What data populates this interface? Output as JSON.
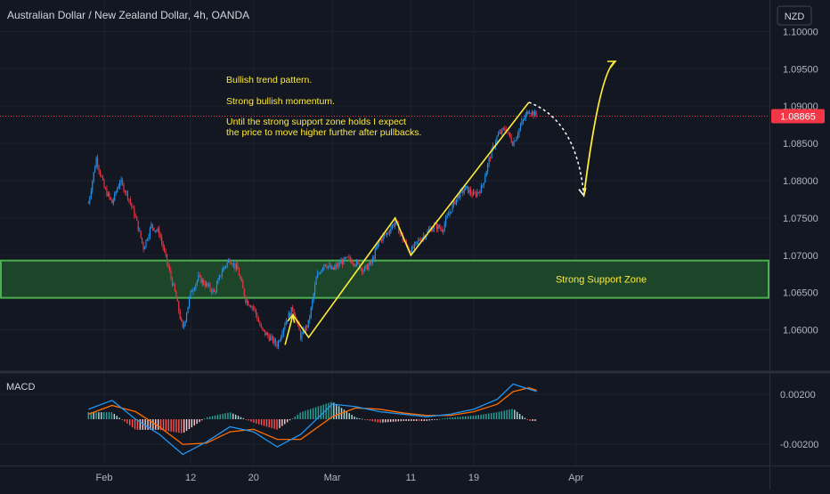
{
  "chart_title": "Australian Dollar / New Zealand Dollar, 4h, OANDA",
  "currency_button": "NZD",
  "last_price": "1.08865",
  "annotations": {
    "line1": "Bullish trend pattern.",
    "line2": "Strong bullish momentum.",
    "line3a": "Until the strong support zone holds I expect",
    "line3b": "the price to move higher further after pullbacks.",
    "zone_label": "Strong Support Zone"
  },
  "macd_label": "MACD",
  "colors": {
    "background": "#131722",
    "up_candle": "#2196f3",
    "down_candle": "#f23645",
    "zone_fill": "#1e4d2b",
    "zone_border": "#4caf50",
    "annotation_text": "#ffeb3b",
    "pattern_line": "#ffeb3b",
    "price_tag": "#f23645",
    "macd_line": "#2196f3",
    "signal_line": "#ff6d00"
  },
  "chart_data": [
    {
      "type": "candlestick",
      "title": "Australian Dollar / New Zealand Dollar, 4h, OANDA",
      "y_axis_ticks": [
        "1.10000",
        "1.09500",
        "1.09000",
        "1.08500",
        "1.08000",
        "1.07500",
        "1.07000",
        "1.06500",
        "1.06000"
      ],
      "ylim": [
        1.0565,
        1.1035
      ],
      "x_axis_ticks": [
        "Feb",
        "12",
        "20",
        "Mar",
        "11",
        "19",
        "Apr"
      ],
      "last_price": 1.08865,
      "support_zone": [
        1.0643,
        1.0693
      ],
      "price_path": [
        {
          "x": "Jan 30",
          "y": 1.077
        },
        {
          "x": "Jan 31",
          "y": 1.083
        },
        {
          "x": "Feb 1",
          "y": 1.079
        },
        {
          "x": "Feb 2",
          "y": 1.077
        },
        {
          "x": "Feb 3",
          "y": 1.08
        },
        {
          "x": "Feb 4",
          "y": 1.078
        },
        {
          "x": "Feb 5",
          "y": 1.075
        },
        {
          "x": "Feb 6",
          "y": 1.071
        },
        {
          "x": "Feb 7",
          "y": 1.074
        },
        {
          "x": "Feb 8",
          "y": 1.073
        },
        {
          "x": "Feb 9",
          "y": 1.069
        },
        {
          "x": "Feb 10",
          "y": 1.065
        },
        {
          "x": "Feb 11",
          "y": 1.06
        },
        {
          "x": "Feb 12",
          "y": 1.065
        },
        {
          "x": "Feb 13",
          "y": 1.067
        },
        {
          "x": "Feb 14",
          "y": 1.066
        },
        {
          "x": "Feb 15",
          "y": 1.065
        },
        {
          "x": "Feb 16",
          "y": 1.068
        },
        {
          "x": "Feb 17",
          "y": 1.0695
        },
        {
          "x": "Feb 18",
          "y": 1.068
        },
        {
          "x": "Feb 19",
          "y": 1.064
        },
        {
          "x": "Feb 20",
          "y": 1.063
        },
        {
          "x": "Feb 21",
          "y": 1.06
        },
        {
          "x": "Feb 22",
          "y": 1.059
        },
        {
          "x": "Feb 23",
          "y": 1.058
        },
        {
          "x": "Feb 24",
          "y": 1.061
        },
        {
          "x": "Feb 25",
          "y": 1.063
        },
        {
          "x": "Feb 26",
          "y": 1.059
        },
        {
          "x": "Feb 27",
          "y": 1.061
        },
        {
          "x": "Feb 28",
          "y": 1.067
        },
        {
          "x": "Feb 29",
          "y": 1.069
        },
        {
          "x": "Mar 1",
          "y": 1.068
        },
        {
          "x": "Mar 2",
          "y": 1.069
        },
        {
          "x": "Mar 3",
          "y": 1.0695
        },
        {
          "x": "Mar 4",
          "y": 1.069
        },
        {
          "x": "Mar 5",
          "y": 1.068
        },
        {
          "x": "Mar 6",
          "y": 1.069
        },
        {
          "x": "Mar 7",
          "y": 1.072
        },
        {
          "x": "Mar 8",
          "y": 1.073
        },
        {
          "x": "Mar 9",
          "y": 1.0745
        },
        {
          "x": "Mar 10",
          "y": 1.072
        },
        {
          "x": "Mar 11",
          "y": 1.0705
        },
        {
          "x": "Mar 12",
          "y": 1.072
        },
        {
          "x": "Mar 13",
          "y": 1.073
        },
        {
          "x": "Mar 14",
          "y": 1.074
        },
        {
          "x": "Mar 15",
          "y": 1.0735
        },
        {
          "x": "Mar 16",
          "y": 1.076
        },
        {
          "x": "Mar 17",
          "y": 1.078
        },
        {
          "x": "Mar 18",
          "y": 1.079
        },
        {
          "x": "Mar 19",
          "y": 1.078
        },
        {
          "x": "Mar 20",
          "y": 1.079
        },
        {
          "x": "Mar 21",
          "y": 1.083
        },
        {
          "x": "Mar 22",
          "y": 1.086
        },
        {
          "x": "Mar 23",
          "y": 1.087
        },
        {
          "x": "Mar 24",
          "y": 1.085
        },
        {
          "x": "Mar 25",
          "y": 1.0875
        },
        {
          "x": "Mar 26",
          "y": 1.0895
        },
        {
          "x": "Mar 27",
          "y": 1.08865
        }
      ],
      "pattern_points": [
        {
          "x": "Feb 24",
          "y": 1.058
        },
        {
          "x": "Feb 25",
          "y": 1.062
        },
        {
          "x": "Feb 27",
          "y": 1.059
        },
        {
          "x": "Mar 9",
          "y": 1.075
        },
        {
          "x": "Mar 11",
          "y": 1.07
        },
        {
          "x": "Mar 26",
          "y": 1.0905
        }
      ],
      "projection": {
        "pullback": {
          "x": "Apr 2",
          "y": 1.078
        },
        "target": {
          "x": "Apr 6",
          "y": 1.096
        }
      }
    },
    {
      "type": "macd",
      "title": "MACD",
      "y_axis_ticks": [
        "0.00200",
        "-0.00200"
      ],
      "ylim": [
        -0.0034,
        0.0034
      ],
      "macd_path": [
        {
          "x": "Jan 30",
          "y": 0.0008
        },
        {
          "x": "Feb 2",
          "y": 0.0015
        },
        {
          "x": "Feb 5",
          "y": 0.0
        },
        {
          "x": "Feb 8",
          "y": -0.0012
        },
        {
          "x": "Feb 11",
          "y": -0.0028
        },
        {
          "x": "Feb 14",
          "y": -0.0018
        },
        {
          "x": "Feb 17",
          "y": -0.0006
        },
        {
          "x": "Feb 20",
          "y": -0.001
        },
        {
          "x": "Feb 23",
          "y": -0.0022
        },
        {
          "x": "Feb 26",
          "y": -0.0012
        },
        {
          "x": "Mar 1",
          "y": 0.0012
        },
        {
          "x": "Mar 4",
          "y": 0.001
        },
        {
          "x": "Mar 7",
          "y": 0.0006
        },
        {
          "x": "Mar 10",
          "y": 0.0004
        },
        {
          "x": "Mar 13",
          "y": 0.0002
        },
        {
          "x": "Mar 16",
          "y": 0.0004
        },
        {
          "x": "Mar 19",
          "y": 0.0008
        },
        {
          "x": "Mar 22",
          "y": 0.0016
        },
        {
          "x": "Mar 24",
          "y": 0.0028
        },
        {
          "x": "Mar 26",
          "y": 0.0024
        },
        {
          "x": "Mar 27",
          "y": 0.0022
        }
      ],
      "signal_path": [
        {
          "x": "Jan 30",
          "y": 0.0004
        },
        {
          "x": "Feb 2",
          "y": 0.0011
        },
        {
          "x": "Feb 5",
          "y": 0.0006
        },
        {
          "x": "Feb 8",
          "y": -0.0006
        },
        {
          "x": "Feb 11",
          "y": -0.002
        },
        {
          "x": "Feb 14",
          "y": -0.0019
        },
        {
          "x": "Feb 17",
          "y": -0.001
        },
        {
          "x": "Feb 20",
          "y": -0.0008
        },
        {
          "x": "Feb 23",
          "y": -0.0016
        },
        {
          "x": "Feb 26",
          "y": -0.0016
        },
        {
          "x": "Mar 1",
          "y": 0.0002
        },
        {
          "x": "Mar 4",
          "y": 0.0009
        },
        {
          "x": "Mar 7",
          "y": 0.0008
        },
        {
          "x": "Mar 10",
          "y": 0.0005
        },
        {
          "x": "Mar 13",
          "y": 0.0003
        },
        {
          "x": "Mar 16",
          "y": 0.0003
        },
        {
          "x": "Mar 19",
          "y": 0.0006
        },
        {
          "x": "Mar 22",
          "y": 0.0012
        },
        {
          "x": "Mar 24",
          "y": 0.0022
        },
        {
          "x": "Mar 26",
          "y": 0.0025
        },
        {
          "x": "Mar 27",
          "y": 0.0023
        }
      ]
    }
  ]
}
